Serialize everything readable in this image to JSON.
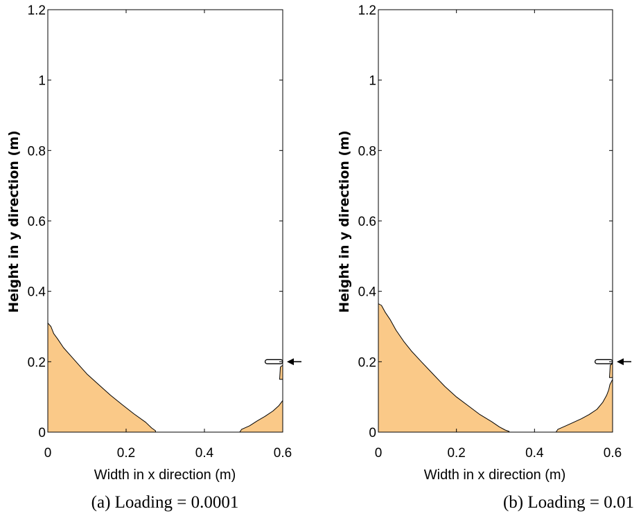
{
  "chart_data": [
    {
      "type": "area",
      "xlabel": "Width in x direction (m)",
      "ylabel": "Height in y direction (m)",
      "caption": "(a) Loading = 0.0001",
      "xlim": [
        0,
        0.6
      ],
      "ylim": [
        0,
        1.2
      ],
      "xticks": [
        "0",
        "0.2",
        "0.4",
        "0.6"
      ],
      "yticks": [
        "0",
        "0.2",
        "0.4",
        "0.6",
        "0.8",
        "1",
        "1.2"
      ],
      "fill_color": "#fac988",
      "series": [
        {
          "x": [
            0,
            0,
            0.008,
            0.015,
            0.025,
            0.04,
            0.06,
            0.08,
            0.1,
            0.13,
            0.16,
            0.19,
            0.22,
            0.25,
            0.265,
            0.275,
            0.275
          ],
          "y": [
            0,
            0.31,
            0.3,
            0.28,
            0.265,
            0.24,
            0.215,
            0.19,
            0.165,
            0.135,
            0.105,
            0.078,
            0.052,
            0.028,
            0.012,
            0.004,
            0
          ]
        },
        {
          "x": [
            0.49,
            0.495,
            0.515,
            0.535,
            0.555,
            0.575,
            0.59,
            0.6,
            0.6
          ],
          "y": [
            0,
            0.008,
            0.018,
            0.032,
            0.045,
            0.06,
            0.075,
            0.09,
            0
          ]
        },
        {
          "x": [
            0.592,
            0.594,
            0.6,
            0.6
          ],
          "y": [
            0.15,
            0.185,
            0.19,
            0.15
          ]
        }
      ],
      "inlet": {
        "x": [
          0.555,
          0.6
        ],
        "y": 0.2,
        "arrow": "left"
      }
    },
    {
      "type": "area",
      "xlabel": "Width in x direction (m)",
      "ylabel": "Height in y direction (m)",
      "caption": "(b) Loading = 0.01",
      "xlim": [
        0,
        0.6
      ],
      "ylim": [
        0,
        1.2
      ],
      "xticks": [
        "0",
        "0.2",
        "0.4",
        "0.6"
      ],
      "yticks": [
        "0",
        "0.2",
        "0.4",
        "0.6",
        "0.8",
        "1",
        "1.2"
      ],
      "fill_color": "#fac988",
      "series": [
        {
          "x": [
            0,
            0,
            0.008,
            0.018,
            0.03,
            0.045,
            0.065,
            0.085,
            0.11,
            0.14,
            0.17,
            0.2,
            0.23,
            0.26,
            0.29,
            0.31,
            0.325,
            0.335,
            0.335
          ],
          "y": [
            0,
            0.365,
            0.36,
            0.34,
            0.32,
            0.29,
            0.258,
            0.23,
            0.2,
            0.165,
            0.13,
            0.1,
            0.075,
            0.05,
            0.03,
            0.015,
            0.006,
            0.002,
            0
          ]
        },
        {
          "x": [
            0.455,
            0.46,
            0.48,
            0.5,
            0.52,
            0.54,
            0.56,
            0.575,
            0.585,
            0.59,
            0.593,
            0.6,
            0.6
          ],
          "y": [
            0,
            0.008,
            0.018,
            0.028,
            0.038,
            0.05,
            0.065,
            0.085,
            0.105,
            0.12,
            0.135,
            0.15,
            0
          ]
        },
        {
          "x": [
            0.592,
            0.594,
            0.6,
            0.6
          ],
          "y": [
            0.155,
            0.19,
            0.195,
            0.155
          ]
        }
      ],
      "inlet": {
        "x": [
          0.555,
          0.6
        ],
        "y": 0.2,
        "arrow": "left"
      }
    }
  ]
}
